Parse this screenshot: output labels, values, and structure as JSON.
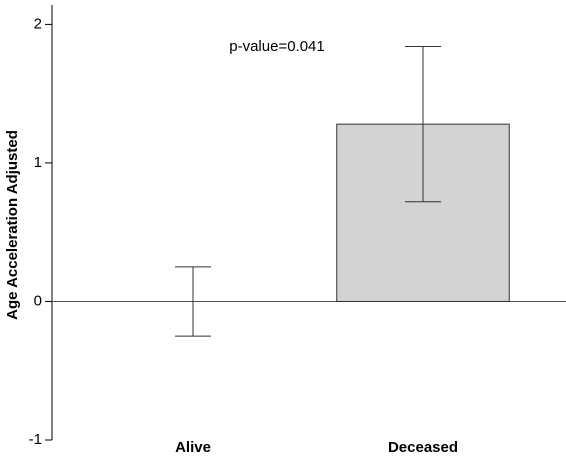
{
  "chart_data": {
    "type": "bar",
    "annotation": "p-value=0.041",
    "y_label": "Age Acceleration Adjusted",
    "categories": [
      "Alive",
      "Deceased"
    ],
    "values": [
      0,
      1.28
    ],
    "errors": [
      0.25,
      0.56
    ],
    "color": "#d3d3d3",
    "ylim": [
      -1,
      2.14
    ],
    "yticks": [
      -1,
      0,
      1,
      2
    ]
  }
}
